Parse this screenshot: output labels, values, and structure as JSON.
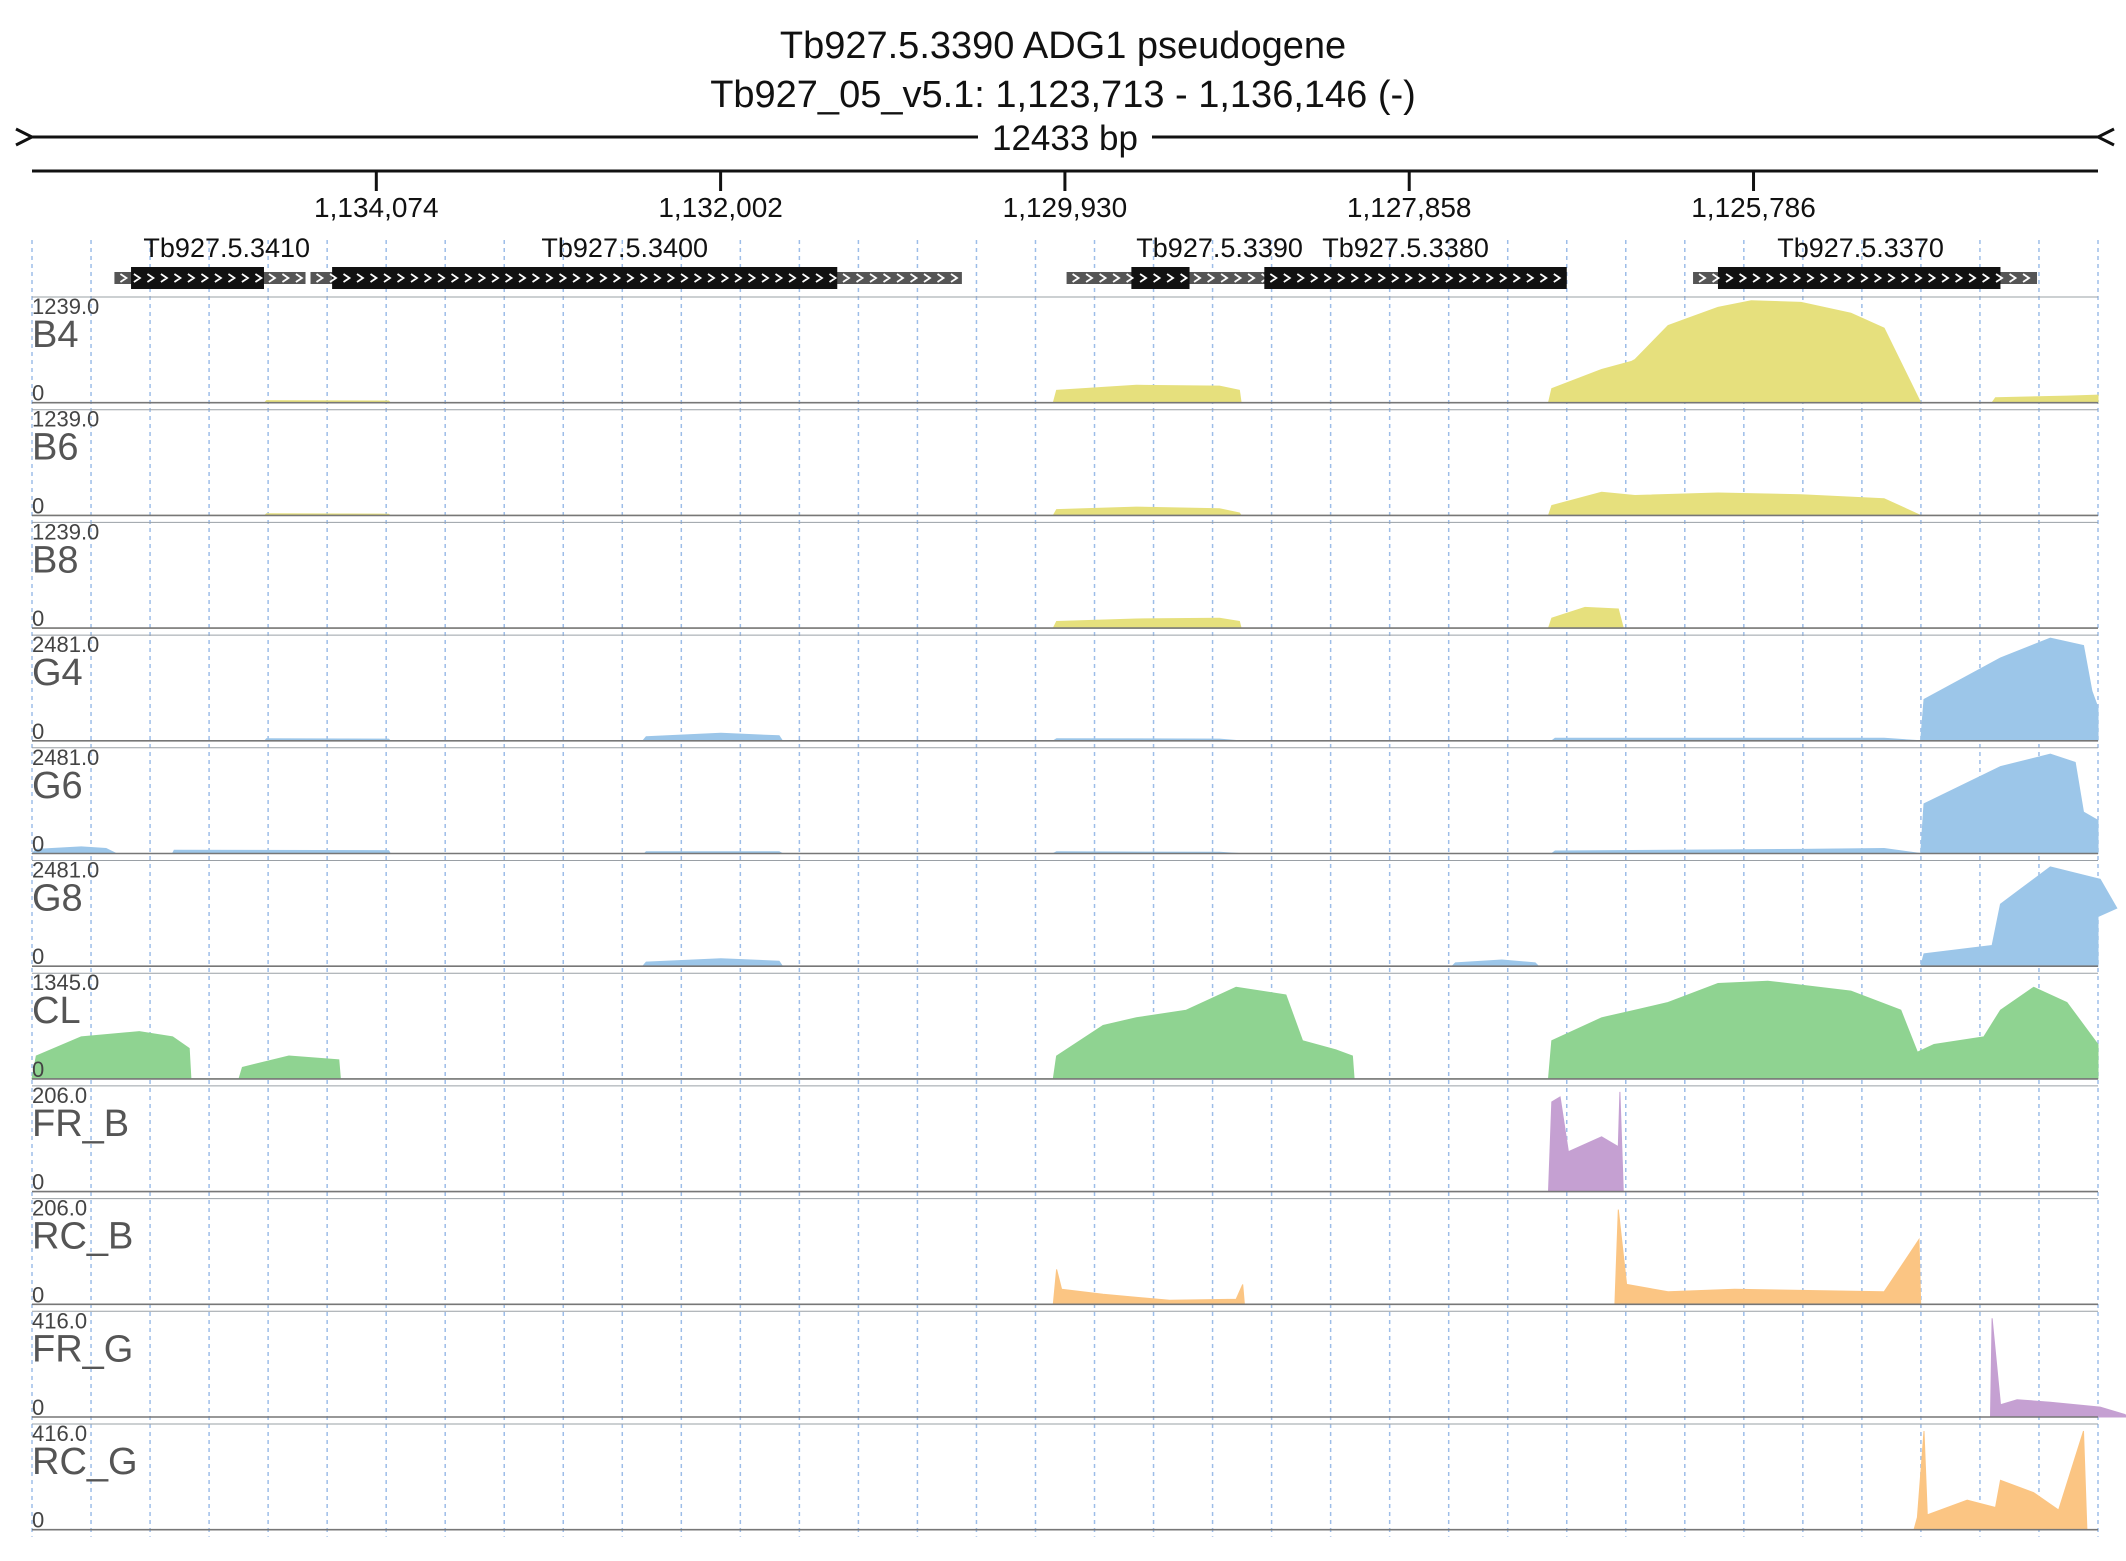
{
  "chart_data": {
    "type": "area",
    "title_line1": "Tb927.5.3390  ADG1  pseudogene",
    "title_line2": "Tb927_05_v5.1: 1,123,713 - 1,136,146 (-)",
    "span_label": "12433 bp",
    "x_range": [
      1136146,
      1123713
    ],
    "x_ticks": [
      {
        "label": "1,134,074",
        "value": 1134074
      },
      {
        "label": "1,132,002",
        "value": 1132002
      },
      {
        "label": "1,129,930",
        "value": 1129930
      },
      {
        "label": "1,127,858",
        "value": 1127858
      },
      {
        "label": "1,125,786",
        "value": 1125786
      }
    ],
    "grid": "dotted",
    "genes": [
      {
        "label": "Tb927.5.3410",
        "label_at": 1134974,
        "utr": [
          1135650,
          1134500
        ],
        "cds": [
          1135550,
          1134750
        ]
      },
      {
        "label": "Tb927.5.3400",
        "label_at": 1132579,
        "utr": [
          1134470,
          1130550
        ],
        "cds": [
          1134340,
          1131300
        ]
      },
      {
        "label": "Tb927.5.3390",
        "label_at": 1128999,
        "utr": [
          1129920,
          1128220
        ],
        "cds": [
          1129530,
          1129180
        ]
      },
      {
        "label": "Tb927.5.3380",
        "label_at": 1127880,
        "utr": [
          1128730,
          1126910
        ],
        "cds": [
          1128730,
          1126910
        ]
      },
      {
        "label": "Tb927.5.3370",
        "label_at": 1125142,
        "utr": [
          1126150,
          1124080
        ],
        "cds": [
          1126000,
          1124300
        ]
      }
    ],
    "tracks": [
      {
        "name": "B4",
        "max_label": "1239.0",
        "zero_label": "0",
        "max": 1239,
        "color": "#e6e07d",
        "points": [
          [
            1136146,
            0
          ],
          [
            1134745,
            0
          ],
          [
            1134735,
            25
          ],
          [
            1134000,
            20
          ],
          [
            1133990,
            0
          ],
          [
            1130000,
            0
          ],
          [
            1129980,
            150
          ],
          [
            1129500,
            210
          ],
          [
            1129000,
            200
          ],
          [
            1128880,
            150
          ],
          [
            1128870,
            0
          ],
          [
            1127020,
            0
          ],
          [
            1127000,
            170
          ],
          [
            1126700,
            400
          ],
          [
            1126520,
            500
          ],
          [
            1126500,
            520
          ],
          [
            1126300,
            930
          ],
          [
            1126180,
            1020
          ],
          [
            1126000,
            1150
          ],
          [
            1125800,
            1230
          ],
          [
            1125500,
            1210
          ],
          [
            1125200,
            1080
          ],
          [
            1125000,
            900
          ],
          [
            1124780,
            0
          ],
          [
            1124350,
            0
          ],
          [
            1124330,
            60
          ],
          [
            1123900,
            80
          ],
          [
            1123713,
            90
          ]
        ]
      },
      {
        "name": "B6",
        "max_label": "1239.0",
        "zero_label": "0",
        "max": 1239,
        "color": "#e6e07d",
        "points": [
          [
            1136146,
            0
          ],
          [
            1134745,
            0
          ],
          [
            1134735,
            20
          ],
          [
            1134000,
            15
          ],
          [
            1133990,
            0
          ],
          [
            1130000,
            0
          ],
          [
            1129980,
            70
          ],
          [
            1129500,
            100
          ],
          [
            1129000,
            80
          ],
          [
            1128880,
            30
          ],
          [
            1128870,
            0
          ],
          [
            1127020,
            0
          ],
          [
            1127000,
            120
          ],
          [
            1126700,
            280
          ],
          [
            1126500,
            240
          ],
          [
            1126000,
            270
          ],
          [
            1125500,
            250
          ],
          [
            1125000,
            200
          ],
          [
            1124780,
            0
          ],
          [
            1123713,
            0
          ]
        ]
      },
      {
        "name": "B8",
        "max_label": "1239.0",
        "zero_label": "0",
        "max": 1239,
        "color": "#e6e07d",
        "points": [
          [
            1136146,
            0
          ],
          [
            1130000,
            0
          ],
          [
            1129980,
            80
          ],
          [
            1129500,
            110
          ],
          [
            1129000,
            120
          ],
          [
            1128880,
            80
          ],
          [
            1128870,
            0
          ],
          [
            1127020,
            0
          ],
          [
            1127000,
            120
          ],
          [
            1126800,
            250
          ],
          [
            1126600,
            230
          ],
          [
            1126570,
            0
          ],
          [
            1123713,
            0
          ]
        ]
      },
      {
        "name": "G4",
        "max_label": "2481.0",
        "zero_label": "0",
        "max": 2481,
        "color": "#9cc6e9",
        "points": [
          [
            1136146,
            0
          ],
          [
            1134745,
            0
          ],
          [
            1134735,
            50
          ],
          [
            1134000,
            40
          ],
          [
            1133990,
            0
          ],
          [
            1132470,
            0
          ],
          [
            1132450,
            100
          ],
          [
            1132000,
            180
          ],
          [
            1131650,
            120
          ],
          [
            1131630,
            0
          ],
          [
            1130000,
            0
          ],
          [
            1129980,
            50
          ],
          [
            1129000,
            40
          ],
          [
            1128880,
            0
          ],
          [
            1127000,
            0
          ],
          [
            1126980,
            60
          ],
          [
            1125000,
            60
          ],
          [
            1124780,
            0
          ],
          [
            1124760,
            1000
          ],
          [
            1124300,
            2000
          ],
          [
            1124000,
            2481
          ],
          [
            1123800,
            2300
          ],
          [
            1123750,
            1200
          ],
          [
            1123713,
            800
          ]
        ]
      },
      {
        "name": "G6",
        "max_label": "2481.0",
        "zero_label": "0",
        "max": 2481,
        "color": "#9cc6e9",
        "points": [
          [
            1136146,
            0
          ],
          [
            1136120,
            100
          ],
          [
            1135850,
            160
          ],
          [
            1135700,
            120
          ],
          [
            1135640,
            0
          ],
          [
            1135300,
            0
          ],
          [
            1135290,
            80
          ],
          [
            1134000,
            70
          ],
          [
            1133990,
            0
          ],
          [
            1132460,
            0
          ],
          [
            1132450,
            40
          ],
          [
            1131650,
            40
          ],
          [
            1131630,
            0
          ],
          [
            1130000,
            0
          ],
          [
            1129980,
            40
          ],
          [
            1129000,
            30
          ],
          [
            1128880,
            0
          ],
          [
            1127000,
            0
          ],
          [
            1126980,
            60
          ],
          [
            1125500,
            100
          ],
          [
            1125000,
            120
          ],
          [
            1124780,
            0
          ],
          [
            1124760,
            1200
          ],
          [
            1124300,
            2100
          ],
          [
            1124000,
            2400
          ],
          [
            1123850,
            2200
          ],
          [
            1123800,
            1000
          ],
          [
            1123713,
            800
          ]
        ]
      },
      {
        "name": "G8",
        "max_label": "2481.0",
        "zero_label": "0",
        "max": 2481,
        "color": "#9cc6e9",
        "points": [
          [
            1136146,
            0
          ],
          [
            1132470,
            0
          ],
          [
            1132450,
            100
          ],
          [
            1132000,
            180
          ],
          [
            1131650,
            120
          ],
          [
            1131630,
            0
          ],
          [
            1127600,
            0
          ],
          [
            1127580,
            80
          ],
          [
            1127300,
            150
          ],
          [
            1127100,
            80
          ],
          [
            1127080,
            0
          ],
          [
            1124780,
            0
          ],
          [
            1124760,
            300
          ],
          [
            1124350,
            500
          ],
          [
            1124300,
            1500
          ],
          [
            1124000,
            2400
          ],
          [
            1123700,
            2100
          ],
          [
            1123600,
            1400
          ],
          [
            1123713,
            1200
          ]
        ]
      },
      {
        "name": "CL",
        "max_label": "1345.0",
        "zero_label": "0",
        "max": 1345,
        "color": "#8fd391",
        "points": [
          [
            1136146,
            0
          ],
          [
            1136120,
            300
          ],
          [
            1135850,
            550
          ],
          [
            1135500,
            620
          ],
          [
            1135300,
            550
          ],
          [
            1135200,
            400
          ],
          [
            1135190,
            0
          ],
          [
            1134900,
            0
          ],
          [
            1134880,
            150
          ],
          [
            1134600,
            300
          ],
          [
            1134300,
            250
          ],
          [
            1134290,
            0
          ],
          [
            1130000,
            0
          ],
          [
            1129980,
            300
          ],
          [
            1129700,
            700
          ],
          [
            1129500,
            800
          ],
          [
            1129200,
            900
          ],
          [
            1128900,
            1200
          ],
          [
            1128600,
            1100
          ],
          [
            1128500,
            500
          ],
          [
            1128300,
            380
          ],
          [
            1128200,
            300
          ],
          [
            1128190,
            0
          ],
          [
            1127020,
            0
          ],
          [
            1127000,
            500
          ],
          [
            1126700,
            800
          ],
          [
            1126500,
            900
          ],
          [
            1126300,
            1000
          ],
          [
            1126000,
            1250
          ],
          [
            1125700,
            1280
          ],
          [
            1125200,
            1150
          ],
          [
            1124900,
            900
          ],
          [
            1124800,
            350
          ],
          [
            1124700,
            450
          ],
          [
            1124400,
            550
          ],
          [
            1124300,
            900
          ],
          [
            1124100,
            1200
          ],
          [
            1123900,
            1000
          ],
          [
            1123713,
            450
          ]
        ]
      },
      {
        "name": "FR_B",
        "max_label": "206.0",
        "zero_label": "0",
        "max": 206,
        "color": "#c5a0d2",
        "points": [
          [
            1136146,
            0
          ],
          [
            1127020,
            0
          ],
          [
            1127000,
            180
          ],
          [
            1126950,
            190
          ],
          [
            1126900,
            80
          ],
          [
            1126700,
            110
          ],
          [
            1126600,
            90
          ],
          [
            1126590,
            200
          ],
          [
            1126570,
            0
          ],
          [
            1123713,
            0
          ]
        ]
      },
      {
        "name": "RC_B",
        "max_label": "206.0",
        "zero_label": "0",
        "max": 206,
        "color": "#fbc583",
        "points": [
          [
            1136146,
            0
          ],
          [
            1130000,
            0
          ],
          [
            1129980,
            70
          ],
          [
            1129950,
            30
          ],
          [
            1129700,
            20
          ],
          [
            1129300,
            8
          ],
          [
            1128900,
            10
          ],
          [
            1128860,
            40
          ],
          [
            1128850,
            0
          ],
          [
            1126620,
            0
          ],
          [
            1126600,
            190
          ],
          [
            1126550,
            40
          ],
          [
            1126300,
            25
          ],
          [
            1125900,
            30
          ],
          [
            1125000,
            25
          ],
          [
            1124790,
            130
          ],
          [
            1124780,
            0
          ],
          [
            1123713,
            0
          ]
        ]
      },
      {
        "name": "FR_G",
        "max_label": "416.0",
        "zero_label": "0",
        "max": 416,
        "color": "#c5a0d2",
        "points": [
          [
            1136146,
            0
          ],
          [
            1124360,
            0
          ],
          [
            1124350,
            400
          ],
          [
            1124300,
            50
          ],
          [
            1124200,
            70
          ],
          [
            1124000,
            60
          ],
          [
            1123700,
            40
          ],
          [
            1123550,
            10
          ],
          [
            1123540,
            0
          ],
          [
            1123713,
            0
          ]
        ]
      },
      {
        "name": "RC_G",
        "max_label": "416.0",
        "zero_label": "0",
        "max": 416,
        "color": "#fbc583",
        "points": [
          [
            1136146,
            0
          ],
          [
            1124820,
            0
          ],
          [
            1124800,
            50
          ],
          [
            1124760,
            400
          ],
          [
            1124740,
            60
          ],
          [
            1124500,
            120
          ],
          [
            1124330,
            90
          ],
          [
            1124300,
            200
          ],
          [
            1124100,
            150
          ],
          [
            1123950,
            80
          ],
          [
            1123800,
            400
          ],
          [
            1123780,
            0
          ],
          [
            1123713,
            0
          ]
        ]
      }
    ]
  }
}
